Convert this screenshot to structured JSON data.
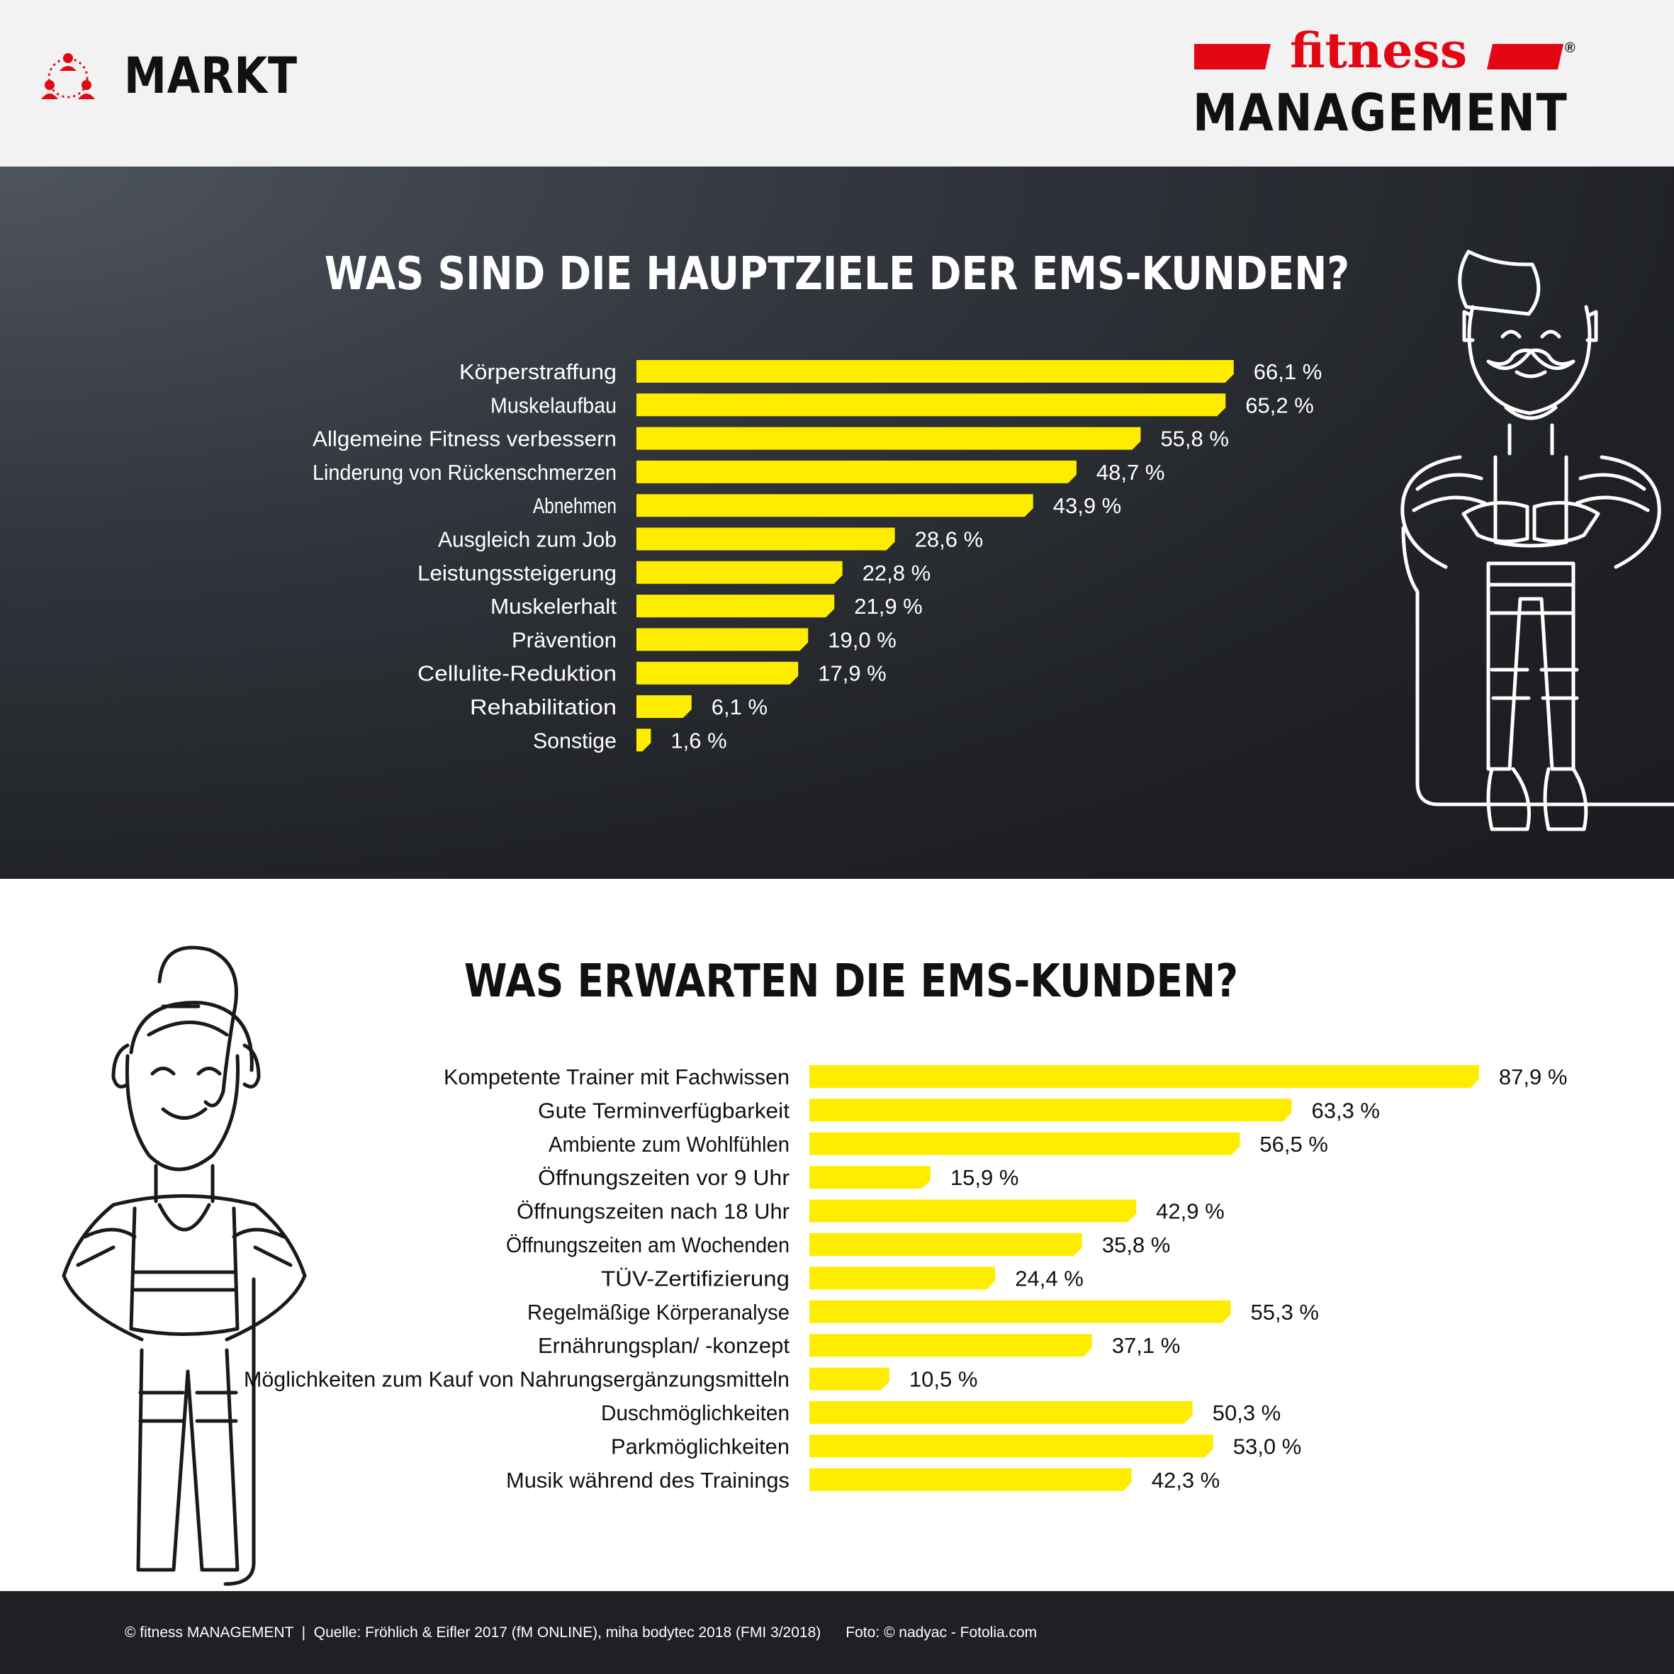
{
  "header": {
    "section_label": "MARKT",
    "logo_top": "fitness",
    "logo_bottom": "MANAGEMENT",
    "logo_registered": "®"
  },
  "colors": {
    "bar": "#ffed00",
    "brand_red": "#e30613",
    "dark_bg": "#26282d"
  },
  "chart_data": [
    {
      "type": "bar",
      "orientation": "horizontal",
      "title": "WAS SIND DIE HAUPTZIELE DER EMS-KUNDEN?",
      "categories": [
        "Körperstraffung",
        "Muskelaufbau",
        "Allgemeine Fitness verbessern",
        "Linderung von Rückenschmerzen",
        "Abnehmen",
        "Ausgleich zum Job",
        "Leistungssteigerung",
        "Muskelerhalt",
        "Prävention",
        "Cellulite-Reduktion",
        "Rehabilitation",
        "Sonstige"
      ],
      "values": [
        66.1,
        65.2,
        55.8,
        48.7,
        43.9,
        28.6,
        22.8,
        21.9,
        19.0,
        17.9,
        6.1,
        1.6
      ],
      "value_labels": [
        "66,1 %",
        "65,2 %",
        "55,8 %",
        "48,7 %",
        "43,9 %",
        "28,6 %",
        "22,8 %",
        "21,9 %",
        "19,0 %",
        "17,9 %",
        "6,1 %",
        "1,6 %"
      ],
      "unit": "%",
      "xlabel": "",
      "ylabel": ""
    },
    {
      "type": "bar",
      "orientation": "horizontal",
      "title": "WAS ERWARTEN DIE EMS-KUNDEN?",
      "categories": [
        "Kompetente Trainer mit Fachwissen",
        "Gute Terminverfügbarkeit",
        "Ambiente zum Wohlfühlen",
        "Öffnungszeiten vor 9 Uhr",
        "Öffnungszeiten nach 18 Uhr",
        "Öffnungszeiten am Wochenden",
        "TÜV-Zertifizierung",
        "Regelmäßige Körperanalyse",
        "Ernährungsplan/ -konzept",
        "Möglichkeiten zum Kauf von Nahrungsergänzungsmitteln",
        "Duschmöglichkeiten",
        "Parkmöglichkeiten",
        "Musik während des Trainings"
      ],
      "values": [
        87.9,
        63.3,
        56.5,
        15.9,
        42.9,
        35.8,
        24.4,
        55.3,
        37.1,
        10.5,
        50.3,
        53.0,
        42.3
      ],
      "value_labels": [
        "87,9 %",
        "63,3 %",
        "56,5 %",
        "15,9 %",
        "42,9 %",
        "35,8 %",
        "24,4 %",
        "55,3 %",
        "37,1 %",
        "10,5 %",
        "50,3 %",
        "53,0 %",
        "42,3 %"
      ],
      "unit": "%",
      "xlabel": "",
      "ylabel": ""
    }
  ],
  "footer": {
    "copyright": "© fitness MANAGEMENT",
    "separator": "|",
    "source": "Quelle: Fröhlich & Eifler 2017 (fM ONLINE), miha bodytec 2018 (FMI 3/2018)",
    "photo": "Foto: © nadyac - Fotolia.com"
  }
}
